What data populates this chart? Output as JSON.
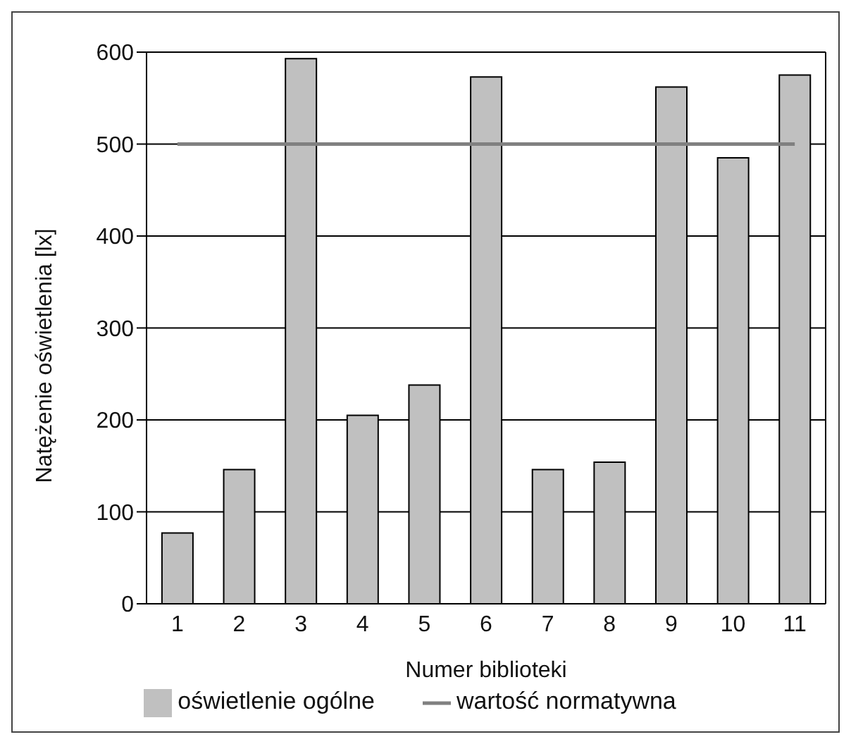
{
  "chart_data": {
    "type": "bar",
    "xlabel": "Numer biblioteki",
    "ylabel": "Natężenie oświetlenia [lx]",
    "categories": [
      "1",
      "2",
      "3",
      "4",
      "5",
      "6",
      "7",
      "8",
      "9",
      "10",
      "11"
    ],
    "series": [
      {
        "name": "oświetlenie ogólne",
        "color": "#c0c0c0",
        "values": [
          77,
          146,
          593,
          205,
          238,
          573,
          146,
          154,
          562,
          485,
          575
        ]
      },
      {
        "name": "wartość normatywna",
        "type": "line",
        "color": "#808080",
        "values": [
          500,
          500,
          500,
          500,
          500,
          500,
          500,
          500,
          500,
          500,
          500
        ]
      }
    ],
    "ylim": [
      0,
      600
    ],
    "yticks": [
      0,
      100,
      200,
      300,
      400,
      500,
      600
    ],
    "grid": "y",
    "legend": "bottom",
    "marker": "none"
  }
}
